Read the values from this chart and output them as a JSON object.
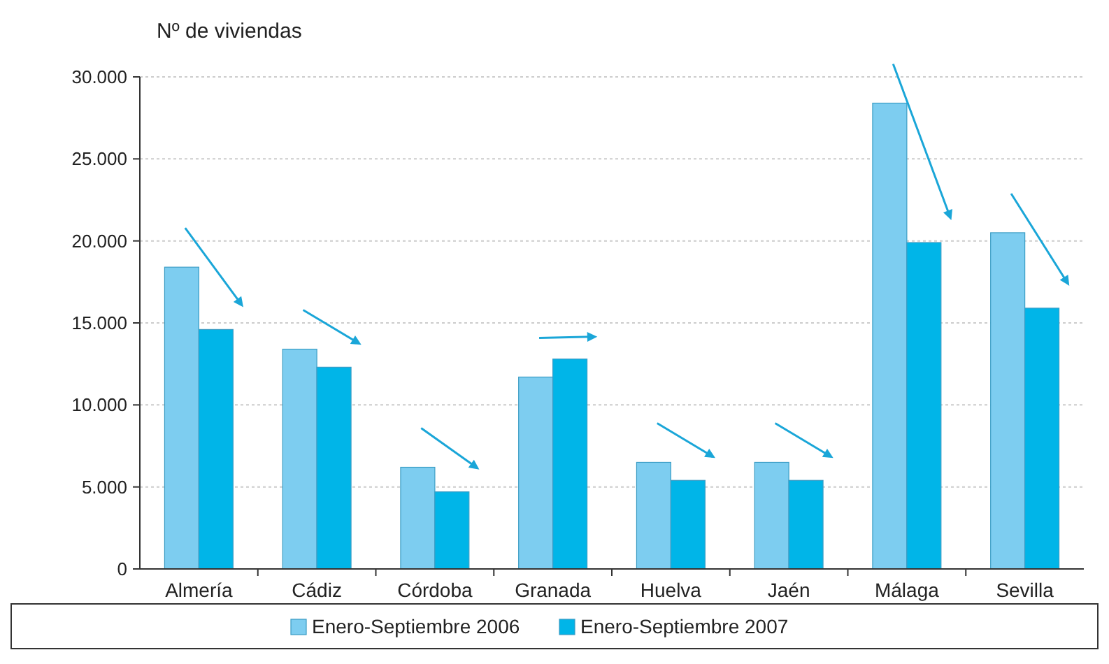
{
  "chart_data": {
    "type": "bar",
    "ylabel": "Nº de viviendas",
    "categories": [
      "Almería",
      "Cádiz",
      "Córdoba",
      "Granada",
      "Huelva",
      "Jaén",
      "Málaga",
      "Sevilla"
    ],
    "series": [
      {
        "name": "Enero-Septiembre 2006",
        "color": "#7dcdf0",
        "values": [
          18400,
          13400,
          6200,
          11700,
          6500,
          6500,
          28400,
          20500
        ]
      },
      {
        "name": "Enero-Septiembre 2007",
        "color": "#00b5e8",
        "values": [
          14600,
          12300,
          4700,
          12800,
          5400,
          5400,
          19900,
          15900
        ]
      }
    ],
    "ylim": [
      0,
      30000
    ],
    "yticks": [
      0,
      {
        "value": 5000,
        "label": "5.000"
      },
      {
        "value": 10000,
        "label": "10.000"
      },
      {
        "value": 15000,
        "label": "15.000"
      },
      {
        "value": 20000,
        "label": "20.000"
      },
      {
        "value": 25000,
        "label": "25.000"
      },
      {
        "value": 30000,
        "label": "30.000"
      }
    ],
    "grid": "y",
    "legend": "bottom"
  }
}
